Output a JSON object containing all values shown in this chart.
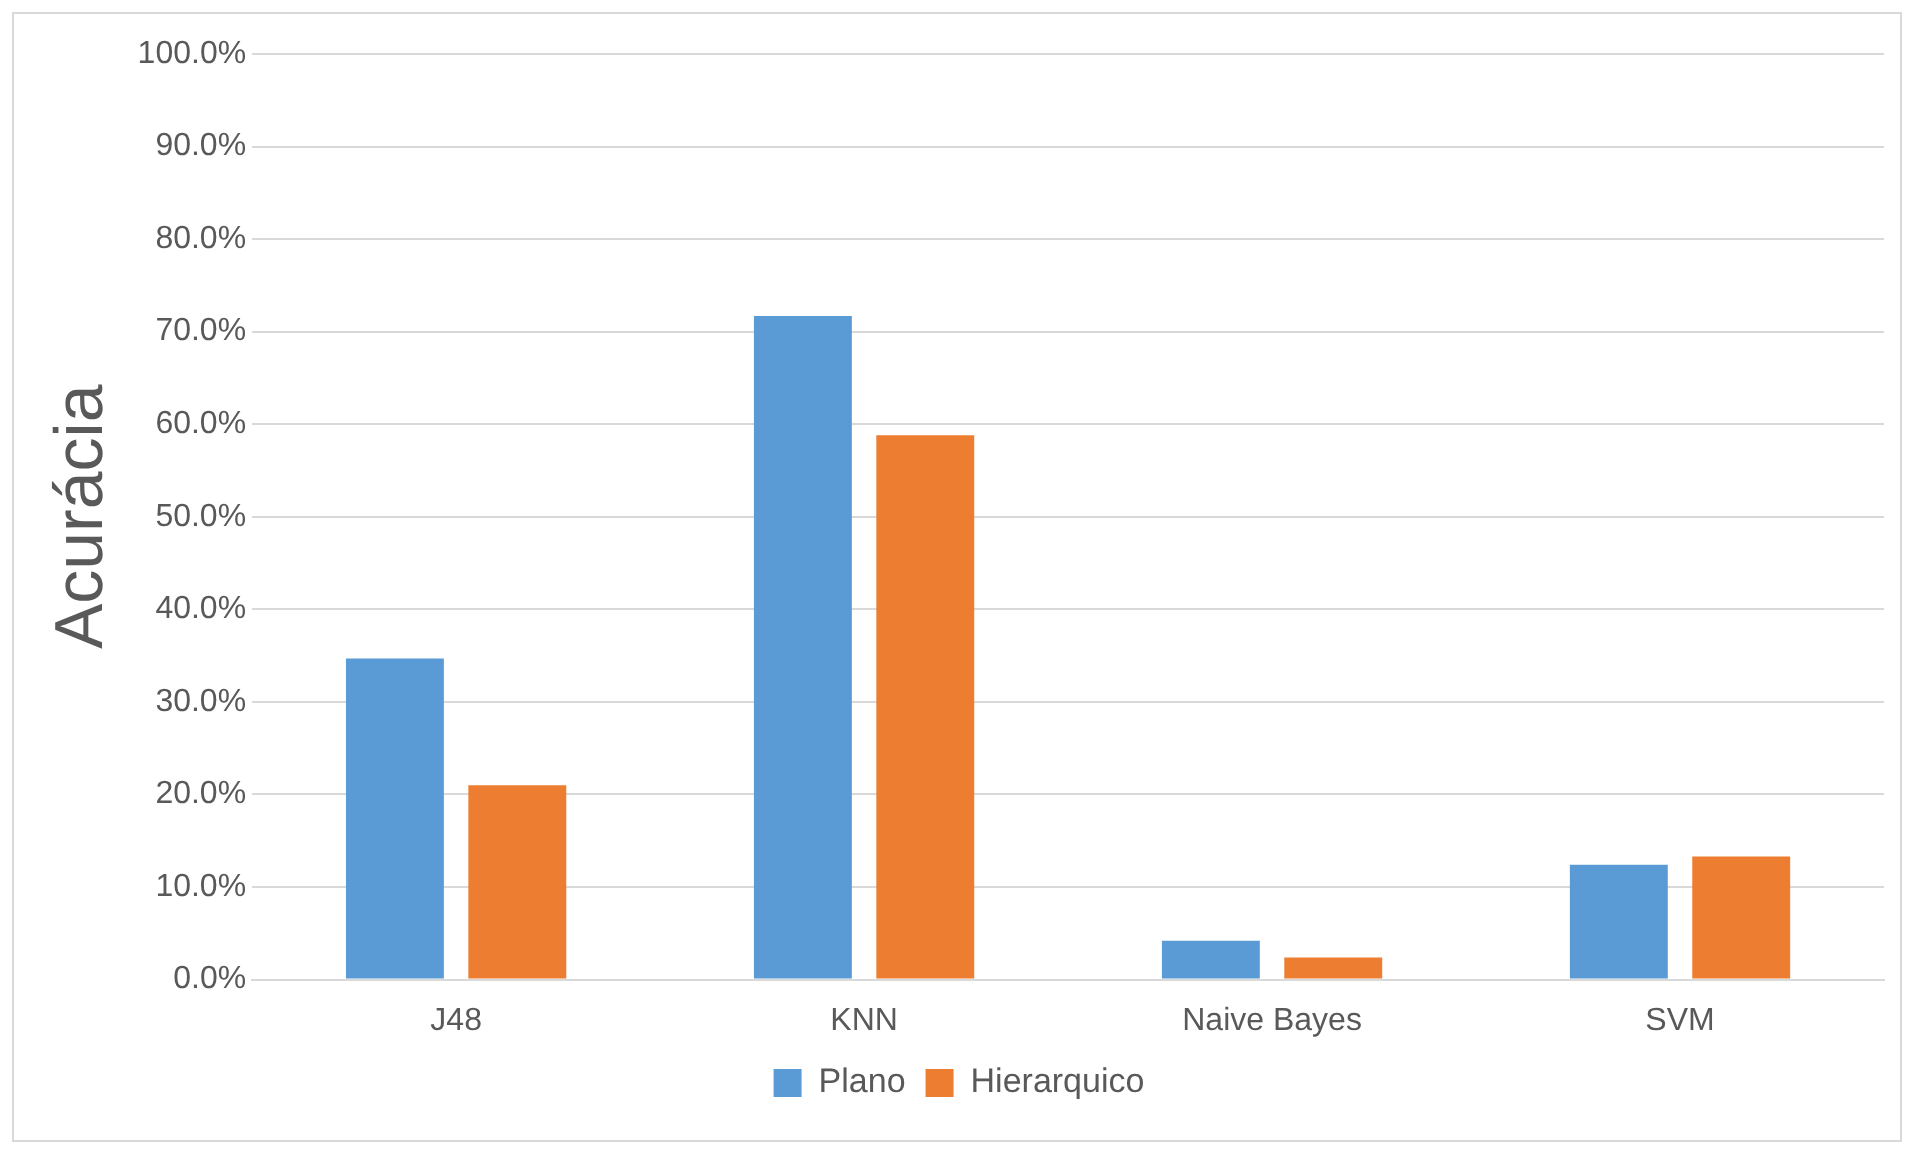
{
  "chart_data": {
    "type": "bar",
    "ylabel": "Acurácia",
    "categories": [
      "J48",
      "KNN",
      "Naive Bayes",
      "SVM"
    ],
    "series": [
      {
        "name": "Plano",
        "color": "#5b9bd5",
        "values": [
          34.7,
          71.7,
          4.2,
          12.4
        ]
      },
      {
        "name": "Hierarquico",
        "color": "#ed7d31",
        "values": [
          21.0,
          58.8,
          2.4,
          13.3
        ]
      }
    ],
    "ylim": [
      0,
      100
    ],
    "yticks": [
      {
        "value": 0,
        "label": "0.0%"
      },
      {
        "value": 10,
        "label": "10.0%"
      },
      {
        "value": 20,
        "label": "20.0%"
      },
      {
        "value": 30,
        "label": "30.0%"
      },
      {
        "value": 40,
        "label": "40.0%"
      },
      {
        "value": 50,
        "label": "50.0%"
      },
      {
        "value": 60,
        "label": "60.0%"
      },
      {
        "value": 70,
        "label": "70.0%"
      },
      {
        "value": 80,
        "label": "80.0%"
      },
      {
        "value": 90,
        "label": "90.0%"
      },
      {
        "value": 100,
        "label": "100.0%"
      }
    ],
    "grid": "y",
    "legend": "bottom"
  }
}
